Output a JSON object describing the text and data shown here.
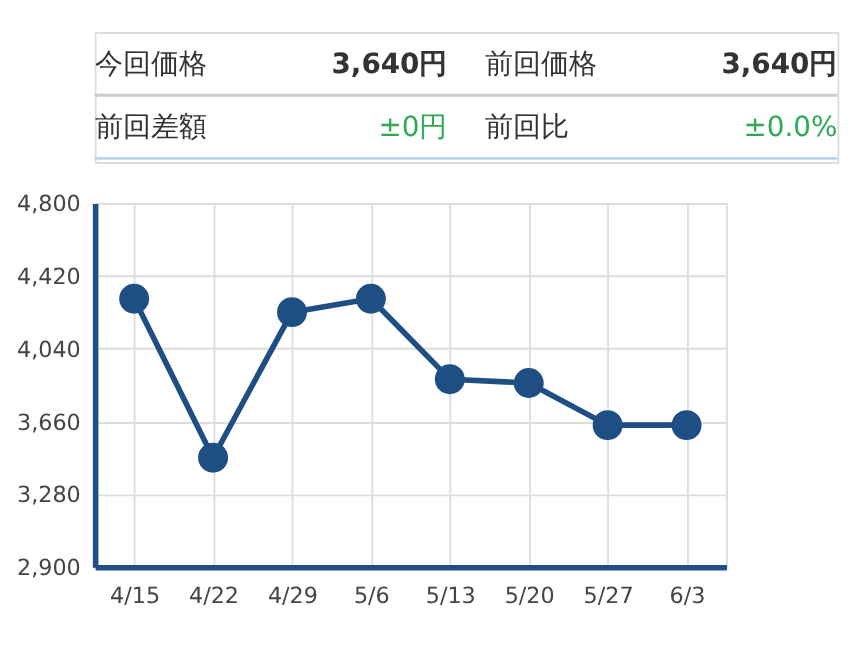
{
  "chart_data": [
    {
      "type": "other",
      "annotations": [
        "今回価格",
        "3,640円",
        "前回価格",
        "3,640円",
        "前回差額",
        "±0円",
        "前回比",
        "±0.0%"
      ]
    },
    {
      "type": "line",
      "categories": [
        "4/15",
        "4/22",
        "4/29",
        "5/6",
        "5/13",
        "5/20",
        "5/27",
        "6/3"
      ],
      "series": [
        {
          "color": "#1f4e84",
          "values": [
            4300,
            3470,
            4230,
            4300,
            3880,
            3860,
            3640,
            3640
          ]
        }
      ],
      "ylim": [
        2900,
        4800
      ],
      "yticks": [
        {
          "value": 2900,
          "label": "2,900"
        },
        {
          "value": 3280,
          "label": "3,280"
        },
        {
          "value": 3660,
          "label": "3,660"
        },
        {
          "value": 4040,
          "label": "4,040"
        },
        {
          "value": 4420,
          "label": "4,420"
        },
        {
          "value": 4800,
          "label": "4,800"
        }
      ],
      "grid": true,
      "marker": "circle",
      "line_style": "solid"
    }
  ]
}
